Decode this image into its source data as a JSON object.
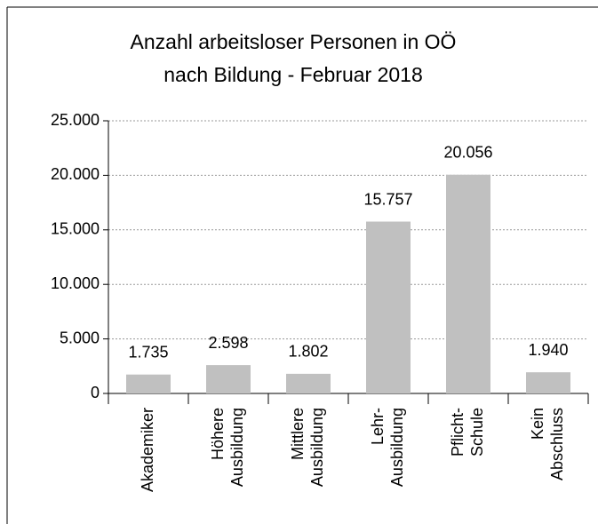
{
  "chart_data": {
    "type": "bar",
    "title": [
      "Anzahl arbeitsloser Personen in OÖ",
      "nach Bildung - Februar 2018"
    ],
    "categories": [
      [
        "Akademiker"
      ],
      [
        "Höhere",
        "Ausbildung"
      ],
      [
        "Mittlere",
        "Ausbildung"
      ],
      [
        "Lehr-",
        "Ausbildung"
      ],
      [
        "Pflicht-",
        "Schule"
      ],
      [
        "Kein",
        "Abschluss"
      ]
    ],
    "values": [
      1735,
      2598,
      1802,
      15757,
      20056,
      1940
    ],
    "value_labels": [
      "1.735",
      "2.598",
      "1.802",
      "15.757",
      "20.056",
      "1.940"
    ],
    "color": "#c0c0c0",
    "ylim": [
      0,
      25000
    ],
    "yticks": [
      0,
      {
        "value": 5000,
        "label": "5.000"
      },
      {
        "value": 10000,
        "label": "10.000"
      },
      {
        "value": 15000,
        "label": "15.000"
      },
      {
        "value": 20000,
        "label": "20.000"
      },
      {
        "value": 25000,
        "label": "25.000"
      }
    ],
    "grid": true
  }
}
